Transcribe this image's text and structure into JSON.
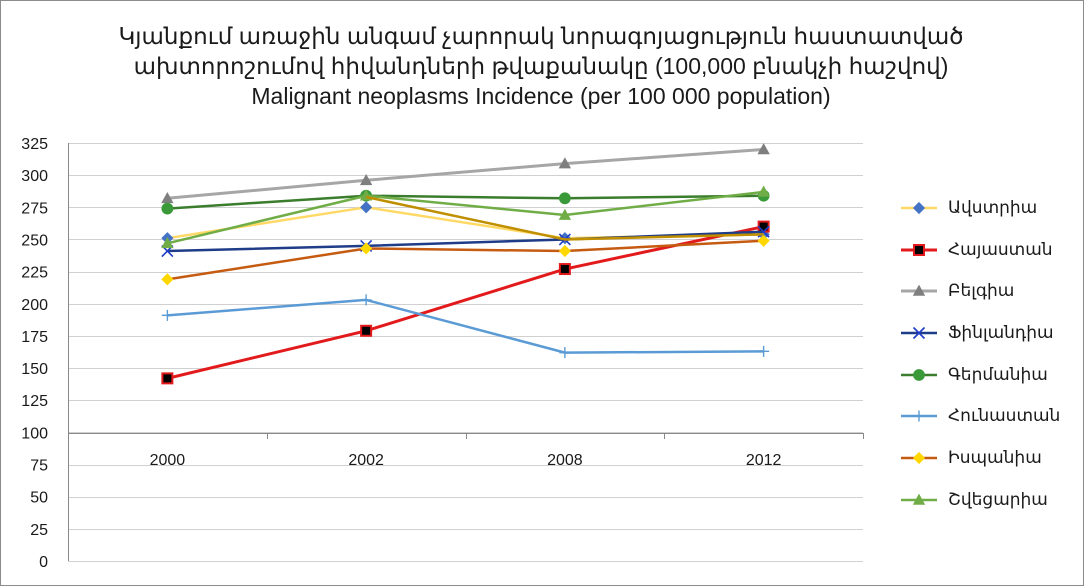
{
  "chart_data": {
    "type": "line",
    "title_lines": [
      "Կյանքում առաջին անգամ չարորակ նորագոյացություն հաստատված",
      "ախտորոշումով հիվանդների թվաքանակը (100,000 բնակչի հաշվով)",
      "Malignant neoplasms Incidence (per 100 000 population)"
    ],
    "categories": [
      "2000",
      "2002",
      "2008",
      "2012"
    ],
    "ylim": [
      0,
      325
    ],
    "yticks": [
      0,
      25,
      50,
      75,
      100,
      125,
      150,
      175,
      200,
      225,
      250,
      275,
      300,
      325
    ],
    "grid": true,
    "legend_position": "right",
    "series": [
      {
        "name": "Ավստրիա",
        "values": [
          251,
          275,
          251,
          254
        ],
        "color": "#FFD966",
        "marker_color": "#4472C4",
        "marker": "diamond",
        "width": 2.5
      },
      {
        "name": "Հայաստան",
        "values": [
          142,
          179,
          227,
          260
        ],
        "color": "#E31A1C",
        "marker_color": "#000000",
        "marker": "square",
        "width": 3
      },
      {
        "name": "Բելգիա",
        "values": [
          282,
          296,
          309,
          320
        ],
        "color": "#A6A6A6",
        "marker_color": "#7F7F7F",
        "marker": "triangle",
        "width": 3
      },
      {
        "name": "Ֆինլանդիա",
        "values": [
          241,
          245,
          250,
          256
        ],
        "color": "#1F3C88",
        "marker_color": "#1F3CC8",
        "marker": "x",
        "width": 2.5
      },
      {
        "name": "Գերմանիա",
        "values": [
          274,
          284,
          282,
          284
        ],
        "color": "#3A7D2C",
        "marker_color": "#3A9A3A",
        "marker": "circle",
        "width": 2.5
      },
      {
        "name": "Հունաստան",
        "values": [
          191,
          203,
          162,
          163
        ],
        "color": "#5B9BD5",
        "marker_color": "#5B9BD5",
        "marker": "plus",
        "width": 2.5
      },
      {
        "name": "Իսպանիա",
        "values": [
          219,
          243,
          241,
          249
        ],
        "color": "#C55A11",
        "marker_color": "#FFD700",
        "marker": "diamond",
        "width": 2.5
      },
      {
        "name": "Շվեցարիա",
        "values": [
          247,
          284,
          269,
          287
        ],
        "color": "#70AD47",
        "marker_color": "#70AD47",
        "marker": "triangle",
        "width": 2.5
      },
      {
        "name": "",
        "values": [
          null,
          283,
          250,
          254
        ],
        "color": "#BF8F00",
        "marker_color": "#BF8F00",
        "marker": "none",
        "width": 2.5
      }
    ]
  }
}
